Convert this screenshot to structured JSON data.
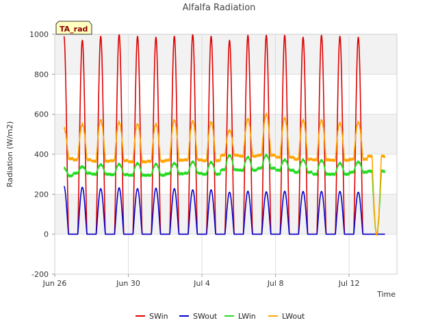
{
  "chart_data": {
    "type": "line",
    "title": "Alfalfa Radiation",
    "xlabel": "Time",
    "ylabel": "Radiation (W/m2)",
    "badge": "TA_rad",
    "xlim": [
      0,
      18.6
    ],
    "ylim": [
      -200,
      1000
    ],
    "y_ticks": [
      -200,
      0,
      200,
      400,
      600,
      800,
      1000
    ],
    "x_ticks": [
      {
        "day": 0,
        "label": "Jun 26"
      },
      {
        "day": 4,
        "label": "Jun 30"
      },
      {
        "day": 8,
        "label": "Jul 4"
      },
      {
        "day": 12,
        "label": "Jul 8"
      },
      {
        "day": 16,
        "label": "Jul 12"
      }
    ],
    "grid": true,
    "legend_position": "bottom",
    "days": [
      "Jun 26",
      "Jun 27",
      "Jun 28",
      "Jun 29",
      "Jun 30",
      "Jul 1",
      "Jul 2",
      "Jul 3",
      "Jul 4",
      "Jul 5",
      "Jul 6",
      "Jul 7",
      "Jul 8",
      "Jul 9",
      "Jul 10",
      "Jul 11",
      "Jul 12",
      "Jul 13"
    ],
    "series": [
      {
        "name": "SWin",
        "color": "#dd0000",
        "daily_peak": [
          990,
          970,
          990,
          1000,
          990,
          985,
          990,
          1000,
          990,
          970,
          995,
          995,
          995,
          985,
          995,
          990,
          985,
          0
        ],
        "night_value": 0
      },
      {
        "name": "SWout",
        "color": "#0000cc",
        "daily_peak": [
          240,
          235,
          228,
          232,
          228,
          230,
          228,
          222,
          222,
          210,
          215,
          212,
          215,
          214,
          214,
          214,
          210,
          0
        ],
        "night_value": 0
      },
      {
        "name": "LWin",
        "color": "#22dd22",
        "daily_peak": [
          330,
          338,
          348,
          350,
          355,
          350,
          355,
          362,
          360,
          395,
          385,
          395,
          372,
          372,
          370,
          355,
          362,
          0
        ],
        "night_value": [
          292,
          305,
          300,
          298,
          295,
          295,
          302,
          305,
          300,
          322,
          320,
          330,
          320,
          310,
          300,
          300,
          310,
          315
        ]
      },
      {
        "name": "LWout",
        "color": "#ffa500",
        "daily_peak": [
          530,
          550,
          570,
          560,
          550,
          550,
          570,
          565,
          560,
          520,
          575,
          600,
          580,
          570,
          570,
          555,
          560,
          0
        ],
        "night_value": [
          378,
          372,
          365,
          368,
          362,
          365,
          370,
          372,
          368,
          395,
          390,
          395,
          385,
          375,
          372,
          370,
          375,
          390
        ]
      }
    ]
  }
}
